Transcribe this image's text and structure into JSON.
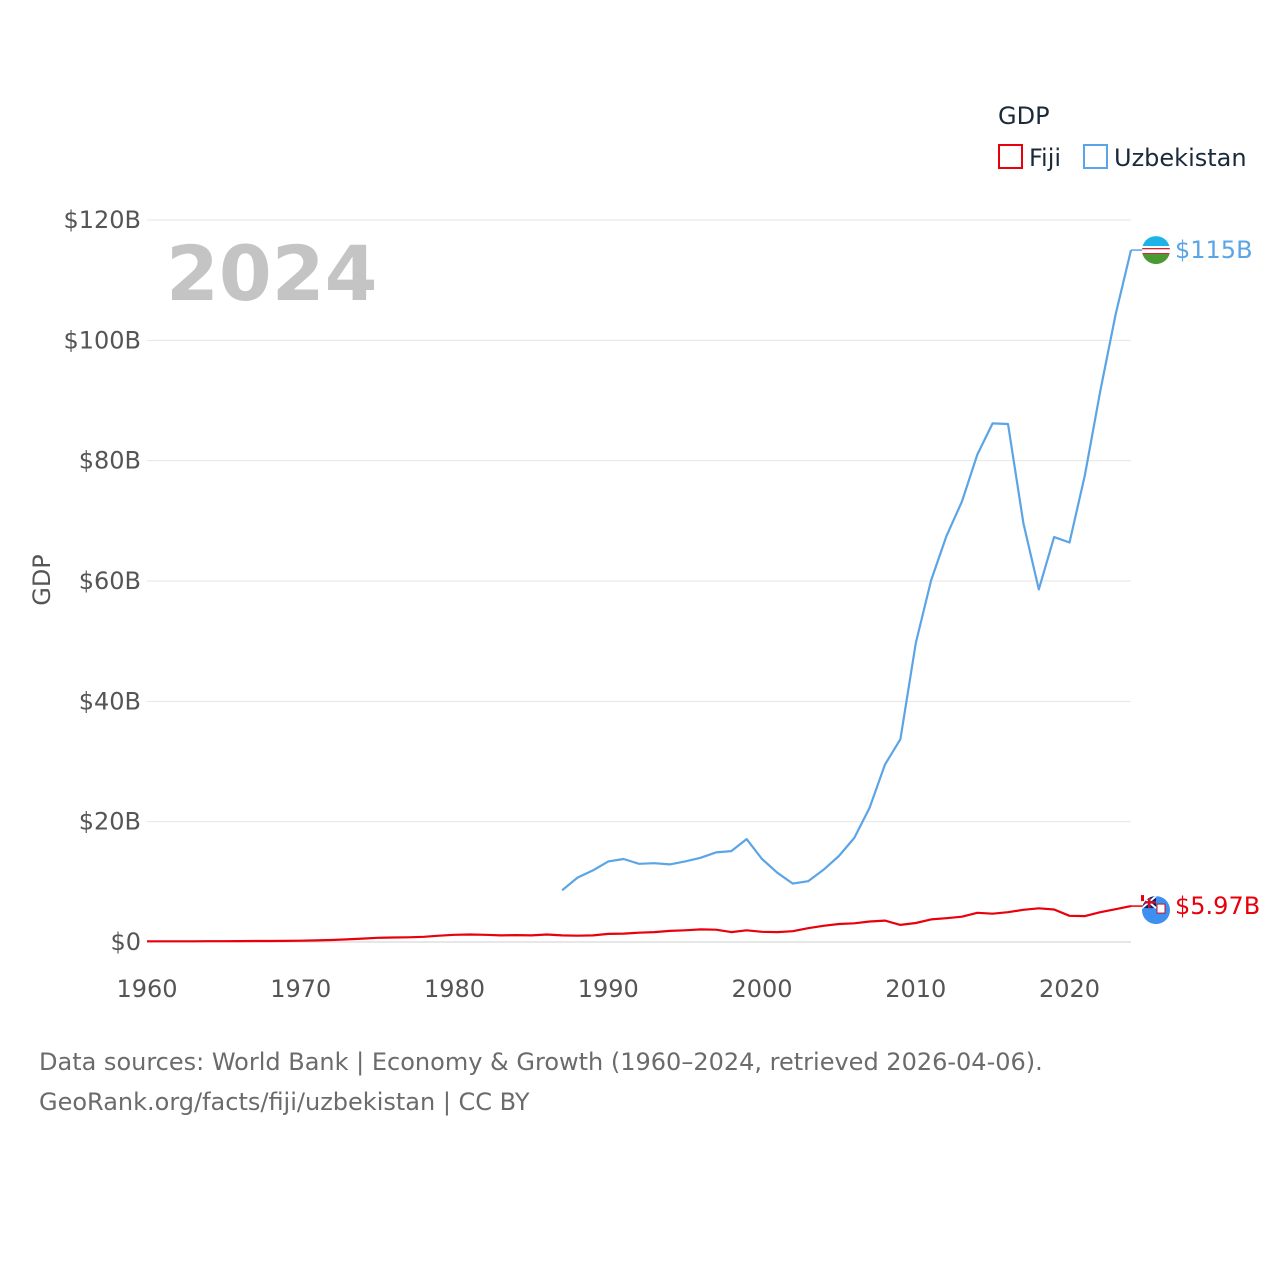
{
  "chart_data": {
    "type": "line",
    "title": "GDP",
    "current_year": "2024",
    "ylabel": "GDP",
    "xlabel": "",
    "xlim": [
      1960,
      2024
    ],
    "ylim": [
      0,
      120
    ],
    "x_ticks": [
      1960,
      1970,
      1980,
      1990,
      2000,
      2010,
      2020
    ],
    "y_ticks": [
      {
        "value": 0,
        "label": "$0"
      },
      {
        "value": 20,
        "label": "$20B"
      },
      {
        "value": 40,
        "label": "$40B"
      },
      {
        "value": 60,
        "label": "$60B"
      },
      {
        "value": 80,
        "label": "$80B"
      },
      {
        "value": 100,
        "label": "$100B"
      },
      {
        "value": 120,
        "label": "$120B"
      }
    ],
    "grid": true,
    "legend_placement": "top-right",
    "series": [
      {
        "name": "Fiji",
        "color": "#e8000b",
        "end_label": "$5.97B",
        "flag": "fiji-flag-icon",
        "points": [
          [
            1960,
            0.11
          ],
          [
            1961,
            0.11
          ],
          [
            1962,
            0.12
          ],
          [
            1963,
            0.12
          ],
          [
            1964,
            0.13
          ],
          [
            1965,
            0.14
          ],
          [
            1966,
            0.15
          ],
          [
            1967,
            0.16
          ],
          [
            1968,
            0.17
          ],
          [
            1969,
            0.19
          ],
          [
            1970,
            0.22
          ],
          [
            1971,
            0.26
          ],
          [
            1972,
            0.33
          ],
          [
            1973,
            0.44
          ],
          [
            1974,
            0.56
          ],
          [
            1975,
            0.7
          ],
          [
            1976,
            0.74
          ],
          [
            1977,
            0.78
          ],
          [
            1978,
            0.86
          ],
          [
            1979,
            1.05
          ],
          [
            1980,
            1.2
          ],
          [
            1981,
            1.25
          ],
          [
            1982,
            1.2
          ],
          [
            1983,
            1.1
          ],
          [
            1984,
            1.15
          ],
          [
            1985,
            1.1
          ],
          [
            1986,
            1.25
          ],
          [
            1987,
            1.1
          ],
          [
            1988,
            1.05
          ],
          [
            1989,
            1.1
          ],
          [
            1990,
            1.35
          ],
          [
            1991,
            1.4
          ],
          [
            1992,
            1.55
          ],
          [
            1993,
            1.65
          ],
          [
            1994,
            1.85
          ],
          [
            1995,
            1.95
          ],
          [
            1996,
            2.1
          ],
          [
            1997,
            2.05
          ],
          [
            1998,
            1.65
          ],
          [
            1999,
            1.95
          ],
          [
            2000,
            1.7
          ],
          [
            2001,
            1.65
          ],
          [
            2002,
            1.8
          ],
          [
            2003,
            2.3
          ],
          [
            2004,
            2.7
          ],
          [
            2005,
            3.0
          ],
          [
            2006,
            3.1
          ],
          [
            2007,
            3.4
          ],
          [
            2008,
            3.55
          ],
          [
            2009,
            2.85
          ],
          [
            2010,
            3.15
          ],
          [
            2011,
            3.75
          ],
          [
            2012,
            3.95
          ],
          [
            2013,
            4.2
          ],
          [
            2014,
            4.85
          ],
          [
            2015,
            4.7
          ],
          [
            2016,
            4.95
          ],
          [
            2017,
            5.35
          ],
          [
            2018,
            5.6
          ],
          [
            2019,
            5.4
          ],
          [
            2020,
            4.35
          ],
          [
            2021,
            4.3
          ],
          [
            2022,
            4.95
          ],
          [
            2023,
            5.45
          ],
          [
            2024,
            5.97
          ]
        ]
      },
      {
        "name": "Uzbekistan",
        "color": "#5ba4e6",
        "end_label": "$115B",
        "flag": "uzbekistan-flag-icon",
        "points": [
          [
            1987,
            8.6
          ],
          [
            1988,
            10.7
          ],
          [
            1989,
            11.9
          ],
          [
            1990,
            13.4
          ],
          [
            1991,
            13.8
          ],
          [
            1992,
            13.0
          ],
          [
            1993,
            13.1
          ],
          [
            1994,
            12.9
          ],
          [
            1995,
            13.4
          ],
          [
            1996,
            14.0
          ],
          [
            1997,
            14.9
          ],
          [
            1998,
            15.1
          ],
          [
            1999,
            17.1
          ],
          [
            2000,
            13.8
          ],
          [
            2001,
            11.5
          ],
          [
            2002,
            9.7
          ],
          [
            2003,
            10.1
          ],
          [
            2004,
            12.0
          ],
          [
            2005,
            14.3
          ],
          [
            2006,
            17.3
          ],
          [
            2007,
            22.3
          ],
          [
            2008,
            29.5
          ],
          [
            2009,
            33.7
          ],
          [
            2010,
            49.7
          ],
          [
            2011,
            60.1
          ],
          [
            2012,
            67.5
          ],
          [
            2013,
            73.2
          ],
          [
            2014,
            81.0
          ],
          [
            2015,
            86.2
          ],
          [
            2016,
            86.1
          ],
          [
            2017,
            69.6
          ],
          [
            2018,
            58.6
          ],
          [
            2019,
            67.3
          ],
          [
            2020,
            66.4
          ],
          [
            2021,
            77.6
          ],
          [
            2022,
            91.6
          ],
          [
            2023,
            104.3
          ],
          [
            2024,
            115.0
          ]
        ]
      }
    ]
  },
  "footer": {
    "line1": "Data sources: World Bank | Economy & Growth (1960–2024, retrieved 2026-04-06).",
    "line2": "GeoRank.org/facts/fiji/uzbekistan | CC BY"
  }
}
